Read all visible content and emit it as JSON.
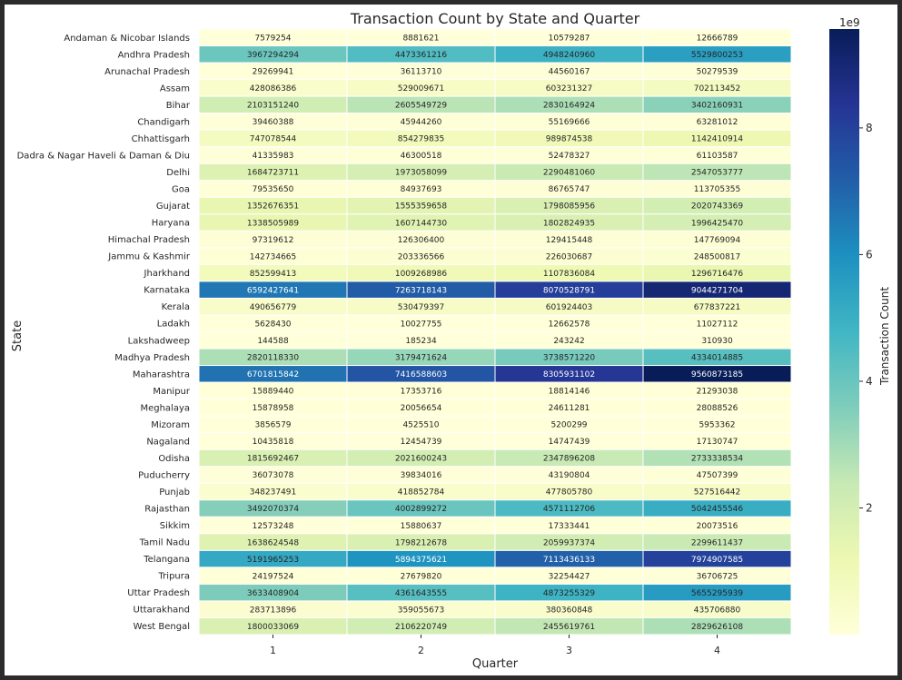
{
  "chart_data": {
    "type": "heatmap",
    "title": "Transaction Count by State and Quarter",
    "xlabel": "Quarter",
    "ylabel": "State",
    "colorbar_label": "Transaction Count",
    "colorbar_exponent": "1e9",
    "colorbar_ticks": [
      2,
      4,
      6,
      8
    ],
    "colormap": "YlGnBu",
    "vmin": 144588,
    "vmax": 9560873185,
    "x": [
      "1",
      "2",
      "3",
      "4"
    ],
    "y": [
      "Andaman & Nicobar Islands",
      "Andhra Pradesh",
      "Arunachal Pradesh",
      "Assam",
      "Bihar",
      "Chandigarh",
      "Chhattisgarh",
      "Dadra & Nagar Haveli & Daman & Diu",
      "Delhi",
      "Goa",
      "Gujarat",
      "Haryana",
      "Himachal Pradesh",
      "Jammu & Kashmir",
      "Jharkhand",
      "Karnataka",
      "Kerala",
      "Ladakh",
      "Lakshadweep",
      "Madhya Pradesh",
      "Maharashtra",
      "Manipur",
      "Meghalaya",
      "Mizoram",
      "Nagaland",
      "Odisha",
      "Puducherry",
      "Punjab",
      "Rajasthan",
      "Sikkim",
      "Tamil Nadu",
      "Telangana",
      "Tripura",
      "Uttar Pradesh",
      "Uttarakhand",
      "West Bengal"
    ],
    "values": [
      [
        7579254,
        8881621,
        10579287,
        12666789
      ],
      [
        3967294294,
        4473361216,
        4948240960,
        5529800253
      ],
      [
        29269941,
        36113710,
        44560167,
        50279539
      ],
      [
        428086386,
        529009671,
        603231327,
        702113452
      ],
      [
        2103151240,
        2605549729,
        2830164924,
        3402160931
      ],
      [
        39460388,
        45944260,
        55169666,
        63281012
      ],
      [
        747078544,
        854279835,
        989874538,
        1142410914
      ],
      [
        41335983,
        46300518,
        52478327,
        61103587
      ],
      [
        1684723711,
        1973058099,
        2290481060,
        2547053777
      ],
      [
        79535650,
        84937693,
        86765747,
        113705355
      ],
      [
        1352676351,
        1555359658,
        1798085956,
        2020743369
      ],
      [
        1338505989,
        1607144730,
        1802824935,
        1996425470
      ],
      [
        97319612,
        126306400,
        129415448,
        147769094
      ],
      [
        142734665,
        203336566,
        226030687,
        248500817
      ],
      [
        852599413,
        1009268986,
        1107836084,
        1296716476
      ],
      [
        6592427641,
        7263718143,
        8070528791,
        9044271704
      ],
      [
        490656779,
        530479397,
        601924403,
        677837221
      ],
      [
        5628430,
        10027755,
        12662578,
        11027112
      ],
      [
        144588,
        185234,
        243242,
        310930
      ],
      [
        2820118330,
        3179471624,
        3738571220,
        4334014885
      ],
      [
        6701815842,
        7416588603,
        8305931102,
        9560873185
      ],
      [
        15889440,
        17353716,
        18814146,
        21293038
      ],
      [
        15878958,
        20056654,
        24611281,
        28088526
      ],
      [
        3856579,
        4525510,
        5200299,
        5953362
      ],
      [
        10435818,
        12454739,
        14747439,
        17130747
      ],
      [
        1815692467,
        2021600243,
        2347896208,
        2733338534
      ],
      [
        36073078,
        39834016,
        43190804,
        47507399
      ],
      [
        348237491,
        418852784,
        477805780,
        527516442
      ],
      [
        3492070374,
        4002899272,
        4571112706,
        5042455546
      ],
      [
        12573248,
        15880637,
        17333441,
        20073516
      ],
      [
        1638624548,
        1798212678,
        2059937374,
        2299611437
      ],
      [
        5191965253,
        5894375621,
        7113436133,
        7974907585
      ],
      [
        24197524,
        27679820,
        32254427,
        36706725
      ],
      [
        3633408904,
        4361643555,
        4873255329,
        5655295939
      ],
      [
        283713896,
        359055673,
        380360848,
        435706880
      ],
      [
        1800033069,
        2106220749,
        2455619761,
        2829626108
      ]
    ],
    "grid": false,
    "legend": "colorbar-right"
  }
}
